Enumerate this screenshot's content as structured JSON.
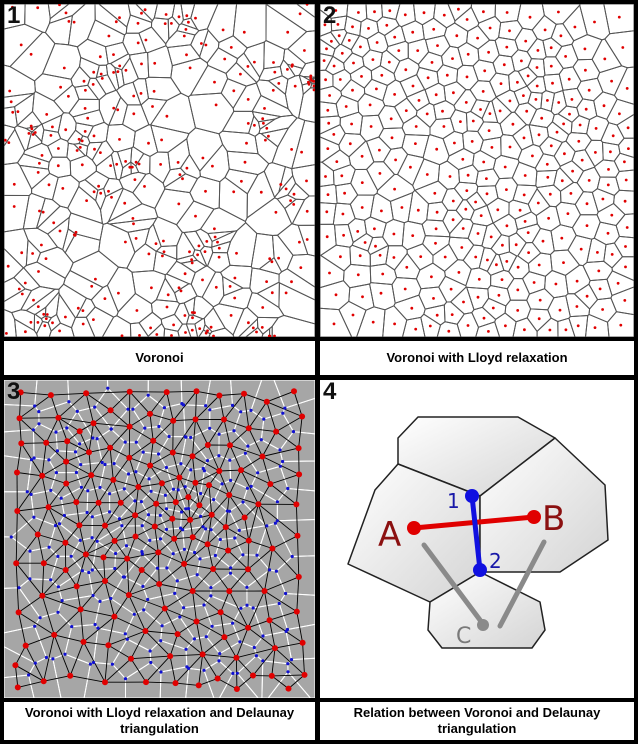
{
  "panels": [
    {
      "number": "1",
      "caption": "Voronoi"
    },
    {
      "number": "2",
      "caption": "Voronoi with Lloyd relaxation"
    },
    {
      "number": "3",
      "caption": "Voronoi with Lloyd relaxation and Delaunay triangulation"
    },
    {
      "number": "4",
      "caption": "Relation between Voronoi and Delaunay triangulation"
    }
  ],
  "diagram4": {
    "point_a": "A",
    "point_b": "B",
    "point_c": "C",
    "vertex_1": "1",
    "vertex_2": "2"
  },
  "colors": {
    "site_red": "#e00000",
    "site_blue": "#1010d0",
    "voronoi_edge": "#555555",
    "panel3_background": "#a6a6a6",
    "delaunay_edge": "#000000",
    "highlight_red": "#e00000",
    "highlight_blue": "#1010e0",
    "label_dark_red": "#8b1010",
    "cell_fill": "#e6e6e6"
  }
}
